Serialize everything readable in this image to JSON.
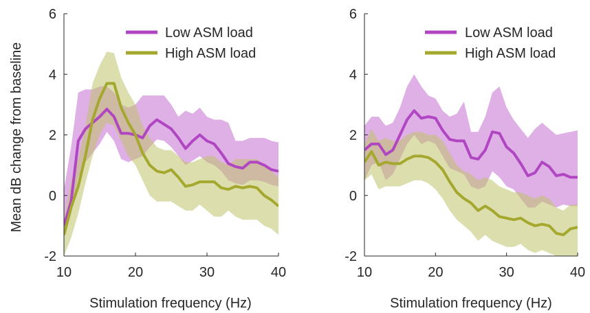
{
  "colors": {
    "low": "#b146c2",
    "low_band": "#c56fd2",
    "high": "#a5a82e",
    "high_band": "#c0c26a",
    "axis": "#262626"
  },
  "chart_data": [
    {
      "type": "line",
      "xlabel": "Stimulation frequency (Hz)",
      "ylabel": "Mean dB change from baseline",
      "xlim": [
        10,
        40
      ],
      "ylim": [
        -2,
        6
      ],
      "xticks": [
        "10",
        "20",
        "30",
        "40"
      ],
      "yticks": [
        "-2",
        "0",
        "2",
        "4",
        "6"
      ],
      "legend_position": "top-right",
      "x": [
        10,
        11,
        12,
        13,
        14,
        15,
        16,
        17,
        18,
        19,
        20,
        21,
        22,
        23,
        24,
        25,
        26,
        27,
        28,
        29,
        30,
        31,
        32,
        33,
        34,
        35,
        36,
        37,
        38,
        39,
        40
      ],
      "series": [
        {
          "name": "Low ASM load",
          "values": [
            -1.0,
            -0.2,
            1.8,
            2.2,
            2.4,
            2.6,
            2.85,
            2.6,
            2.05,
            2.05,
            2.0,
            1.9,
            2.3,
            2.5,
            2.35,
            2.2,
            1.9,
            1.55,
            1.8,
            2.0,
            1.8,
            1.7,
            1.4,
            1.05,
            0.95,
            0.9,
            1.1,
            1.1,
            1.0,
            0.85,
            0.8
          ],
          "lower": [
            -1.4,
            -0.6,
            0.6,
            1.1,
            1.4,
            1.7,
            2.1,
            1.8,
            1.2,
            1.1,
            1.2,
            1.3,
            1.6,
            1.85,
            1.8,
            1.6,
            1.3,
            1.0,
            1.15,
            1.3,
            1.1,
            1.0,
            0.8,
            0.5,
            0.4,
            0.35,
            0.5,
            0.5,
            0.45,
            0.35,
            0.3
          ],
          "upper": [
            0.2,
            1.6,
            3.4,
            3.5,
            3.5,
            3.6,
            3.6,
            3.4,
            3.0,
            2.9,
            3.0,
            3.3,
            3.3,
            3.3,
            3.3,
            3.0,
            2.6,
            2.8,
            2.7,
            2.9,
            2.6,
            2.5,
            2.5,
            2.4,
            1.8,
            1.8,
            1.9,
            1.9,
            1.9,
            1.8,
            1.75
          ]
        },
        {
          "name": "High ASM load",
          "values": [
            -1.3,
            -0.4,
            0.3,
            1.3,
            2.5,
            3.2,
            3.7,
            3.7,
            2.9,
            2.4,
            2.0,
            1.4,
            1.0,
            0.8,
            0.75,
            0.85,
            0.6,
            0.3,
            0.35,
            0.45,
            0.45,
            0.45,
            0.25,
            0.2,
            0.3,
            0.25,
            0.3,
            0.25,
            0.0,
            -0.15,
            -0.35
          ],
          "lower": [
            -2.0,
            -1.4,
            -0.6,
            0.4,
            1.3,
            2.0,
            2.4,
            2.3,
            1.8,
            1.3,
            1.0,
            0.5,
            0.0,
            -0.2,
            -0.2,
            -0.2,
            -0.35,
            -0.5,
            -0.5,
            -0.3,
            -0.5,
            -0.7,
            -0.7,
            -0.5,
            -0.7,
            -0.8,
            -0.8,
            -0.8,
            -1.0,
            -1.1,
            -1.3
          ],
          "upper": [
            -0.8,
            0.5,
            1.2,
            2.3,
            3.7,
            4.3,
            4.75,
            4.7,
            3.9,
            3.4,
            3.0,
            2.3,
            1.9,
            1.6,
            1.5,
            1.5,
            1.3,
            1.1,
            1.1,
            1.2,
            1.3,
            1.3,
            1.1,
            1.0,
            1.2,
            1.2,
            1.2,
            1.2,
            1.0,
            0.8,
            0.6
          ]
        }
      ]
    },
    {
      "type": "line",
      "xlabel": "Stimulation frequency (Hz)",
      "ylabel": "",
      "xlim": [
        10,
        40
      ],
      "ylim": [
        -2,
        6
      ],
      "xticks": [
        "10",
        "20",
        "30",
        "40"
      ],
      "yticks": [
        "-2",
        "0",
        "2",
        "4",
        "6"
      ],
      "legend_position": "top-right",
      "x": [
        10,
        11,
        12,
        13,
        14,
        15,
        16,
        17,
        18,
        19,
        20,
        21,
        22,
        23,
        24,
        25,
        26,
        27,
        28,
        29,
        30,
        31,
        32,
        33,
        34,
        35,
        36,
        37,
        38,
        39,
        40
      ],
      "series": [
        {
          "name": "Low ASM load",
          "values": [
            1.5,
            1.7,
            1.7,
            1.35,
            1.5,
            2.0,
            2.5,
            2.8,
            2.55,
            2.6,
            2.55,
            2.15,
            1.85,
            1.8,
            1.8,
            1.25,
            1.2,
            1.5,
            2.1,
            2.05,
            1.6,
            1.4,
            1.05,
            0.65,
            0.75,
            1.1,
            0.95,
            0.65,
            0.7,
            0.6,
            0.6
          ],
          "lower": [
            0.5,
            1.0,
            1.1,
            0.5,
            0.7,
            1.2,
            1.7,
            2.0,
            1.7,
            1.8,
            1.7,
            1.3,
            0.9,
            0.8,
            0.7,
            0.3,
            0.2,
            0.3,
            0.8,
            0.6,
            0.3,
            0.2,
            -0.1,
            -0.4,
            -0.4,
            -0.2,
            -0.3,
            -0.4,
            -0.3,
            -0.35,
            -0.35
          ],
          "upper": [
            2.3,
            2.6,
            2.6,
            2.3,
            2.4,
            2.9,
            3.6,
            4.0,
            3.6,
            3.3,
            3.2,
            2.8,
            2.6,
            2.7,
            3.1,
            2.1,
            2.1,
            2.6,
            3.4,
            3.6,
            2.9,
            2.5,
            2.2,
            1.9,
            2.2,
            2.4,
            2.2,
            2.0,
            2.05,
            2.1,
            2.15
          ]
        },
        {
          "name": "High ASM load",
          "values": [
            1.1,
            1.45,
            1.0,
            1.1,
            1.05,
            1.05,
            1.2,
            1.3,
            1.3,
            1.25,
            1.1,
            0.85,
            0.45,
            0.1,
            -0.1,
            -0.25,
            -0.5,
            -0.35,
            -0.5,
            -0.7,
            -0.75,
            -0.8,
            -0.75,
            -0.9,
            -1.0,
            -0.95,
            -1.0,
            -1.25,
            -1.3,
            -1.1,
            -1.05
          ],
          "lower": [
            0.5,
            0.7,
            0.2,
            0.3,
            0.3,
            0.3,
            0.4,
            0.5,
            0.5,
            0.4,
            0.2,
            -0.1,
            -0.5,
            -0.8,
            -1.0,
            -1.2,
            -1.5,
            -1.3,
            -1.5,
            -1.6,
            -1.7,
            -1.7,
            -1.6,
            -1.8,
            -1.9,
            -1.8,
            -1.9,
            -2.0,
            -2.0,
            -2.0,
            -2.0
          ],
          "upper": [
            1.7,
            2.2,
            1.8,
            1.9,
            1.8,
            1.8,
            2.0,
            2.1,
            2.1,
            2.0,
            2.0,
            1.8,
            1.4,
            1.0,
            0.8,
            0.7,
            0.5,
            0.6,
            0.5,
            0.3,
            0.2,
            0.1,
            0.1,
            0.0,
            -0.1,
            0.0,
            -0.1,
            -0.4,
            -0.5,
            -0.3,
            -0.3
          ]
        }
      ]
    }
  ]
}
